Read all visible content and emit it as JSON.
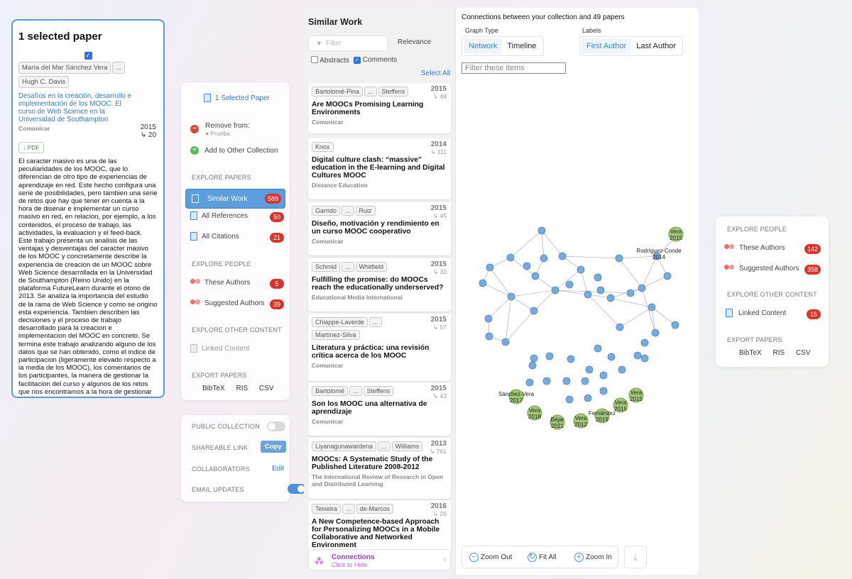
{
  "selected_panel": {
    "title": "1 selected paper",
    "authors": [
      "María del Mar Sánchez Vera",
      "...",
      "Hugh C. Davis"
    ],
    "paper_title": "Desafíos en la creación, desarrollo e implementación de los MOOC: El curso de Web Science en la Universidad de Southampton",
    "venue": "Comunicar",
    "year": "2015",
    "citations": "↳ 20",
    "pdf_label": "↓ PDF",
    "abstract": "El caracter masivo es una de las peculiaridades de los MOOC, que lo diferencian de otro tipo de experiencias de aprendizaje en red. Este hecho configura una serie de posibilidades, pero tambien una serie de retos que hay que tener en cuenta a la hora de disenar e implementar un curso masivo en red, en relacion, por ejemplo, a los contenidos, el proceso de trabajo, las actividades, la evaluacion y el feed-back. Este trabajo presenta un analisis de las ventajas y desventajas del caracter masivo de los MOOC y concretamente describe la experiencia de creacion de un MOOC sobre Web Science desarrollada en la Universidad de Southampton (Reino Unido) en la plataforma FutureLearn durante el otono de 2013. Se analiza la importancia del estudio de la rama de Web Science y como se origino esta experiencia. Tambien describen las decisiones y el proceso de trabajo desarrollado para la creacion e implementacion del MOOC en concreto. Se termina este trabajo analizando alguno de los datos que se han obtenido, como el indice de participacion (ligeramente elevado respecto a la media de los MOOC), los comentarios de los participantes, la manera de gestionar la facilitacion del curso y algunos de los retos que nos encontramos a la hora de gestionar un MOOC, que se relacionan con el diseno del curso, la plataforma que se utiliza y como se organiza la facilitacion del curso."
  },
  "actions": {
    "selected_label": "1 Selected Paper",
    "remove_label": "Remove from:",
    "remove_collection": "Prueba",
    "add_label": "Add to Other Collection",
    "explore_papers": "EXPLORE PAPERS",
    "nav": [
      {
        "label": "Similar Work",
        "count": "589"
      },
      {
        "label": "All References",
        "count": "50"
      },
      {
        "label": "All Citations",
        "count": "21"
      }
    ],
    "explore_people": "EXPLORE PEOPLE",
    "people": [
      {
        "label": "These Authors",
        "count": "5"
      },
      {
        "label": "Suggested Authors",
        "count": "39"
      }
    ],
    "explore_other": "EXPLORE OTHER CONTENT",
    "linked_content": "Linked Content",
    "export": "EXPORT PAPERS",
    "export_formats": [
      "BibTeX",
      "RIS",
      "CSV"
    ]
  },
  "settings": {
    "public": "PUBLIC COLLECTION",
    "shareable": "SHAREABLE LINK",
    "copy": "Copy",
    "collaborators": "COLLABORATORS",
    "edit": "Edit",
    "email": "EMAIL UPDATES"
  },
  "similar": {
    "title": "Similar Work",
    "filter_placeholder": "Filter",
    "sort": "Relevance",
    "abstracts": "Abstracts",
    "comments": "Comments",
    "select_all": "Select All",
    "papers": [
      {
        "authors": [
          "Bartolomé-Pina",
          "...",
          "Steffens"
        ],
        "year": "2015",
        "cites": "↳ 48",
        "title": "Are MOOCs Promising Learning Environments",
        "venue": "Comunicar"
      },
      {
        "authors": [
          "Knox"
        ],
        "year": "2014",
        "cites": "↳ 111",
        "title": "Digital culture clash: “massive” education in the E-learning and Digital Cultures MOOC",
        "venue": "Distance Education"
      },
      {
        "authors": [
          "Garrido",
          "...",
          "Ruiz"
        ],
        "year": "2015",
        "cites": "↳ 45",
        "title": "Diseño, motivación y rendimiento en un curso MOOC cooperativo",
        "venue": "Comunicar"
      },
      {
        "authors": [
          "Schmid",
          "...",
          "Whitfield"
        ],
        "year": "2015",
        "cites": "↳ 33",
        "title": "Fulfilling the promise: do MOOCs reach the educationally underserved?",
        "venue": "Educational Media International"
      },
      {
        "authors": [
          "Chiappe-Laverde",
          "...",
          "Martínez-Silva"
        ],
        "year": "2015",
        "cites": "↳ 57",
        "title": "Literatura y práctica: una revisión crítica acerca de los MOOC",
        "venue": "Comunicar"
      },
      {
        "authors": [
          "Bartolomé",
          "...",
          "Steffens"
        ],
        "year": "2015",
        "cites": "↳ 43",
        "title": "Son los MOOC una alternativa de aprendizaje",
        "venue": "Comunicar"
      },
      {
        "authors": [
          "Liyanagunawardena",
          "...",
          "Williams"
        ],
        "year": "2013",
        "cites": "↳ 761",
        "title": "MOOCs: A Systematic Study of the Published Literature 2008-2012",
        "venue": "The International Review of Research in Open and Distributed Learning"
      },
      {
        "authors": [
          "Teixeira",
          "...",
          "de-Marcos"
        ],
        "year": "2016",
        "cites": "↳ 26",
        "title": "A New Competence-based Approach for Personalizing MOOCs in a Mobile Collaborative and Networked Environment",
        "venue": ""
      }
    ],
    "connections": "Connections",
    "connections_sub": "Click to Hide"
  },
  "graph": {
    "header": "Connections between your collection and 49 papers",
    "graph_type_label": "Graph Type",
    "graph_types": [
      "Network",
      "Timeline"
    ],
    "labels_label": "Labels",
    "labels": [
      "First Author",
      "Last Author"
    ],
    "filter_placeholder": "Filter these items",
    "zoom_out": "Zoom Out",
    "fit_all": "Fit All",
    "zoom_in": "Zoom In",
    "green_nodes": [
      {
        "name": "Vera",
        "year": "2015"
      },
      {
        "name": "Sánchez-Vera",
        "year": "2017"
      },
      {
        "name": "Vera",
        "year": "2018"
      },
      {
        "name": "Béjar",
        "year": "2021"
      },
      {
        "name": "Vera",
        "year": "2012"
      },
      {
        "name": "Fernández",
        "year": "2019"
      },
      {
        "name": "Vera",
        "year": "2015"
      },
      {
        "name": "Vera",
        "year": "2015"
      }
    ],
    "labeled_blue": [
      {
        "name": "Rodríguez-Conde",
        "year": "2014"
      }
    ]
  },
  "explore": {
    "explore_people": "EXPLORE PEOPLE",
    "people": [
      {
        "label": "These Authors",
        "count": "142"
      },
      {
        "label": "Suggested Authors",
        "count": "358"
      }
    ],
    "explore_other": "EXPLORE OTHER CONTENT",
    "linked_content": {
      "label": "Linked Content",
      "count": "15"
    },
    "export": "EXPORT PAPERS",
    "export_formats": [
      "BibTeX",
      "RIS",
      "CSV"
    ]
  }
}
